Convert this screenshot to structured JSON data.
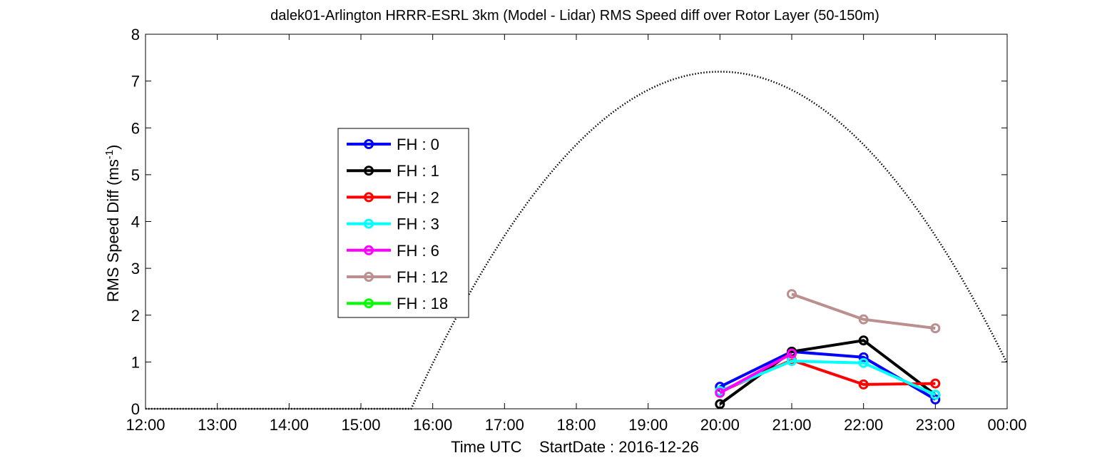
{
  "chart_data": {
    "type": "line",
    "title": "dalek01-Arlington HRRR-ESRL 3km (Model - Lidar) RMS Speed diff over Rotor Layer (50-150m)",
    "xlabel_prefix": "Time UTC",
    "xlabel_startdate": "StartDate : 2016-12-26",
    "ylabel": "RMS Speed Diff (ms",
    "ylabel_sup": "-1",
    "ylabel_suffix": ")",
    "xlim": [
      12,
      24
    ],
    "ylim": [
      0,
      8
    ],
    "x_tick_values": [
      12,
      13,
      14,
      15,
      16,
      17,
      18,
      19,
      20,
      21,
      22,
      23,
      24
    ],
    "x_tick_labels": [
      "12:00",
      "13:00",
      "14:00",
      "15:00",
      "16:00",
      "17:00",
      "18:00",
      "19:00",
      "20:00",
      "21:00",
      "22:00",
      "23:00",
      "00:00"
    ],
    "y_tick_values": [
      0,
      1,
      2,
      3,
      4,
      5,
      6,
      7,
      8
    ],
    "y_tick_labels": [
      "0",
      "1",
      "2",
      "3",
      "4",
      "5",
      "6",
      "7",
      "8"
    ],
    "grid": false,
    "legend_position": "upper-left-inside",
    "series": [
      {
        "name": "FH : 0",
        "color": "#0000ff",
        "x": [
          20,
          21,
          22,
          23
        ],
        "values": [
          0.47,
          1.22,
          1.1,
          0.2
        ]
      },
      {
        "name": "FH : 1",
        "color": "#000000",
        "x": [
          20,
          21,
          22,
          23
        ],
        "values": [
          0.1,
          1.22,
          1.46,
          0.3
        ]
      },
      {
        "name": "FH : 2",
        "color": "#ff0000",
        "x": [
          20,
          21,
          22,
          23
        ],
        "values": [
          0.36,
          1.04,
          0.52,
          0.54
        ]
      },
      {
        "name": "FH : 3",
        "color": "#00ffff",
        "x": [
          20,
          21,
          22,
          23
        ],
        "values": [
          0.38,
          1.02,
          0.98,
          0.3
        ]
      },
      {
        "name": "FH : 6",
        "color": "#ff00ff",
        "x": [
          20,
          21
        ],
        "values": [
          0.34,
          1.18
        ]
      },
      {
        "name": "FH : 12",
        "color": "#bc8f8f",
        "x": [
          21,
          22,
          23
        ],
        "values": [
          2.45,
          1.91,
          1.72
        ]
      },
      {
        "name": "FH : 18",
        "color": "#00ff00",
        "x": [],
        "values": []
      }
    ],
    "solar_elevation_curve": {
      "style": "dotted",
      "color": "#000000",
      "zero_until_x": 15.7,
      "peak_x": 20,
      "peak_value": 7.2,
      "x": [
        12,
        15.7,
        16,
        17,
        18,
        19,
        20,
        21,
        22,
        23,
        24
      ],
      "values": [
        0,
        0,
        0.55,
        3.8,
        5.85,
        6.95,
        7.2,
        6.7,
        5.45,
        3.4,
        0.75
      ]
    }
  }
}
